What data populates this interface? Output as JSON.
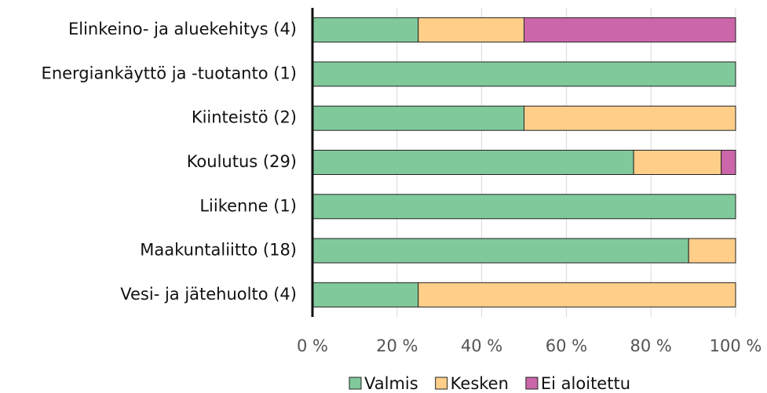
{
  "chart_data": {
    "type": "stacked_barh",
    "categories": [
      "Elinkeino- ja aluekehitys (4)",
      "Energiankäyttö ja -tuotanto (1)",
      "Kiinteistö (2)",
      "Koulutus (29)",
      "Liikenne (1)",
      "Maakuntaliitto (18)",
      "Vesi- ja jätehuolto (4)"
    ],
    "series": [
      {
        "name": "Valmis",
        "color": "#80c99b",
        "values": [
          25,
          100,
          50,
          75.9,
          100,
          88.9,
          25
        ]
      },
      {
        "name": "Kesken",
        "color": "#ffcf8a",
        "values": [
          25,
          0,
          50,
          20.7,
          0,
          11.1,
          75
        ]
      },
      {
        "name": "Ei aloitettu",
        "color": "#cc66aa",
        "values": [
          50,
          0,
          0,
          3.4,
          0,
          0,
          0
        ]
      }
    ],
    "xlim": [
      0,
      100
    ],
    "xticks": [
      {
        "value": 0,
        "label": "0 %"
      },
      {
        "value": 20,
        "label": "20 %"
      },
      {
        "value": 40,
        "label": "40 %"
      },
      {
        "value": 60,
        "label": "60 %"
      },
      {
        "value": 80,
        "label": "80 %"
      },
      {
        "value": 100,
        "label": "100 %"
      }
    ],
    "grid": true,
    "legend": "bottom"
  }
}
